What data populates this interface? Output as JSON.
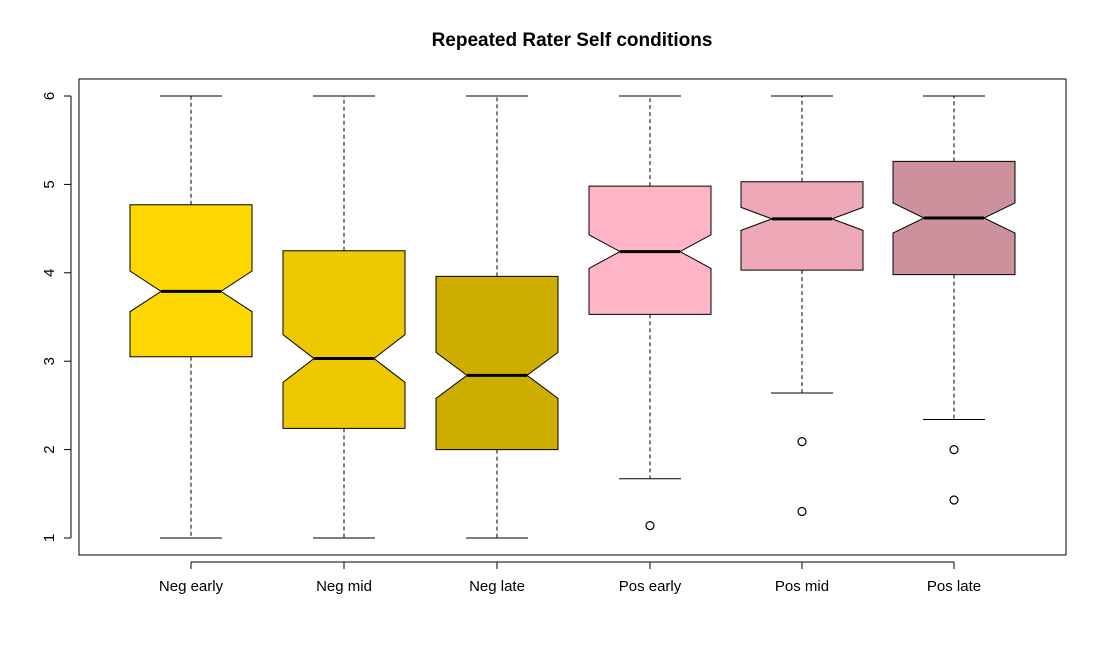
{
  "chart_data": {
    "type": "boxplot",
    "title": "Repeated Rater Self conditions",
    "xlabel": "",
    "ylabel": "",
    "ylim": [
      0.8,
      6.2
    ],
    "yticks": [
      1,
      2,
      3,
      4,
      5,
      6
    ],
    "notched": true,
    "grid": false,
    "categories": [
      "Neg early",
      "Neg mid",
      "Neg late",
      "Pos early",
      "Pos mid",
      "Pos late"
    ],
    "boxes": [
      {
        "category": "Neg early",
        "whisker_low": 1.0,
        "q1": 3.05,
        "median": 3.79,
        "q3": 4.77,
        "whisker_high": 6.0,
        "notch_low": 3.56,
        "notch_high": 4.02,
        "color": "#FFD700",
        "outliers": []
      },
      {
        "category": "Neg mid",
        "whisker_low": 1.0,
        "q1": 2.24,
        "median": 3.03,
        "q3": 4.25,
        "whisker_high": 6.0,
        "notch_low": 2.76,
        "notch_high": 3.3,
        "color": "#EEC900",
        "outliers": []
      },
      {
        "category": "Neg late",
        "whisker_low": 1.0,
        "q1": 2.0,
        "median": 2.84,
        "q3": 3.96,
        "whisker_high": 6.0,
        "notch_low": 2.58,
        "notch_high": 3.1,
        "color": "#CDAD00",
        "outliers": []
      },
      {
        "category": "Pos early",
        "whisker_low": 1.67,
        "q1": 3.53,
        "median": 4.24,
        "q3": 4.98,
        "whisker_high": 6.0,
        "notch_low": 4.05,
        "notch_high": 4.43,
        "color": "#FFB5C5",
        "outliers": [
          1.14
        ]
      },
      {
        "category": "Pos mid",
        "whisker_low": 2.64,
        "q1": 4.03,
        "median": 4.61,
        "q3": 5.03,
        "whisker_high": 6.0,
        "notch_low": 4.48,
        "notch_high": 4.74,
        "color": "#EEA9B8",
        "outliers": [
          2.09,
          1.3
        ]
      },
      {
        "category": "Pos late",
        "whisker_low": 2.34,
        "q1": 3.98,
        "median": 4.62,
        "q3": 5.26,
        "whisker_high": 6.0,
        "notch_low": 4.45,
        "notch_high": 4.79,
        "color": "#CD919E",
        "outliers": [
          2.0,
          1.43
        ]
      }
    ]
  }
}
